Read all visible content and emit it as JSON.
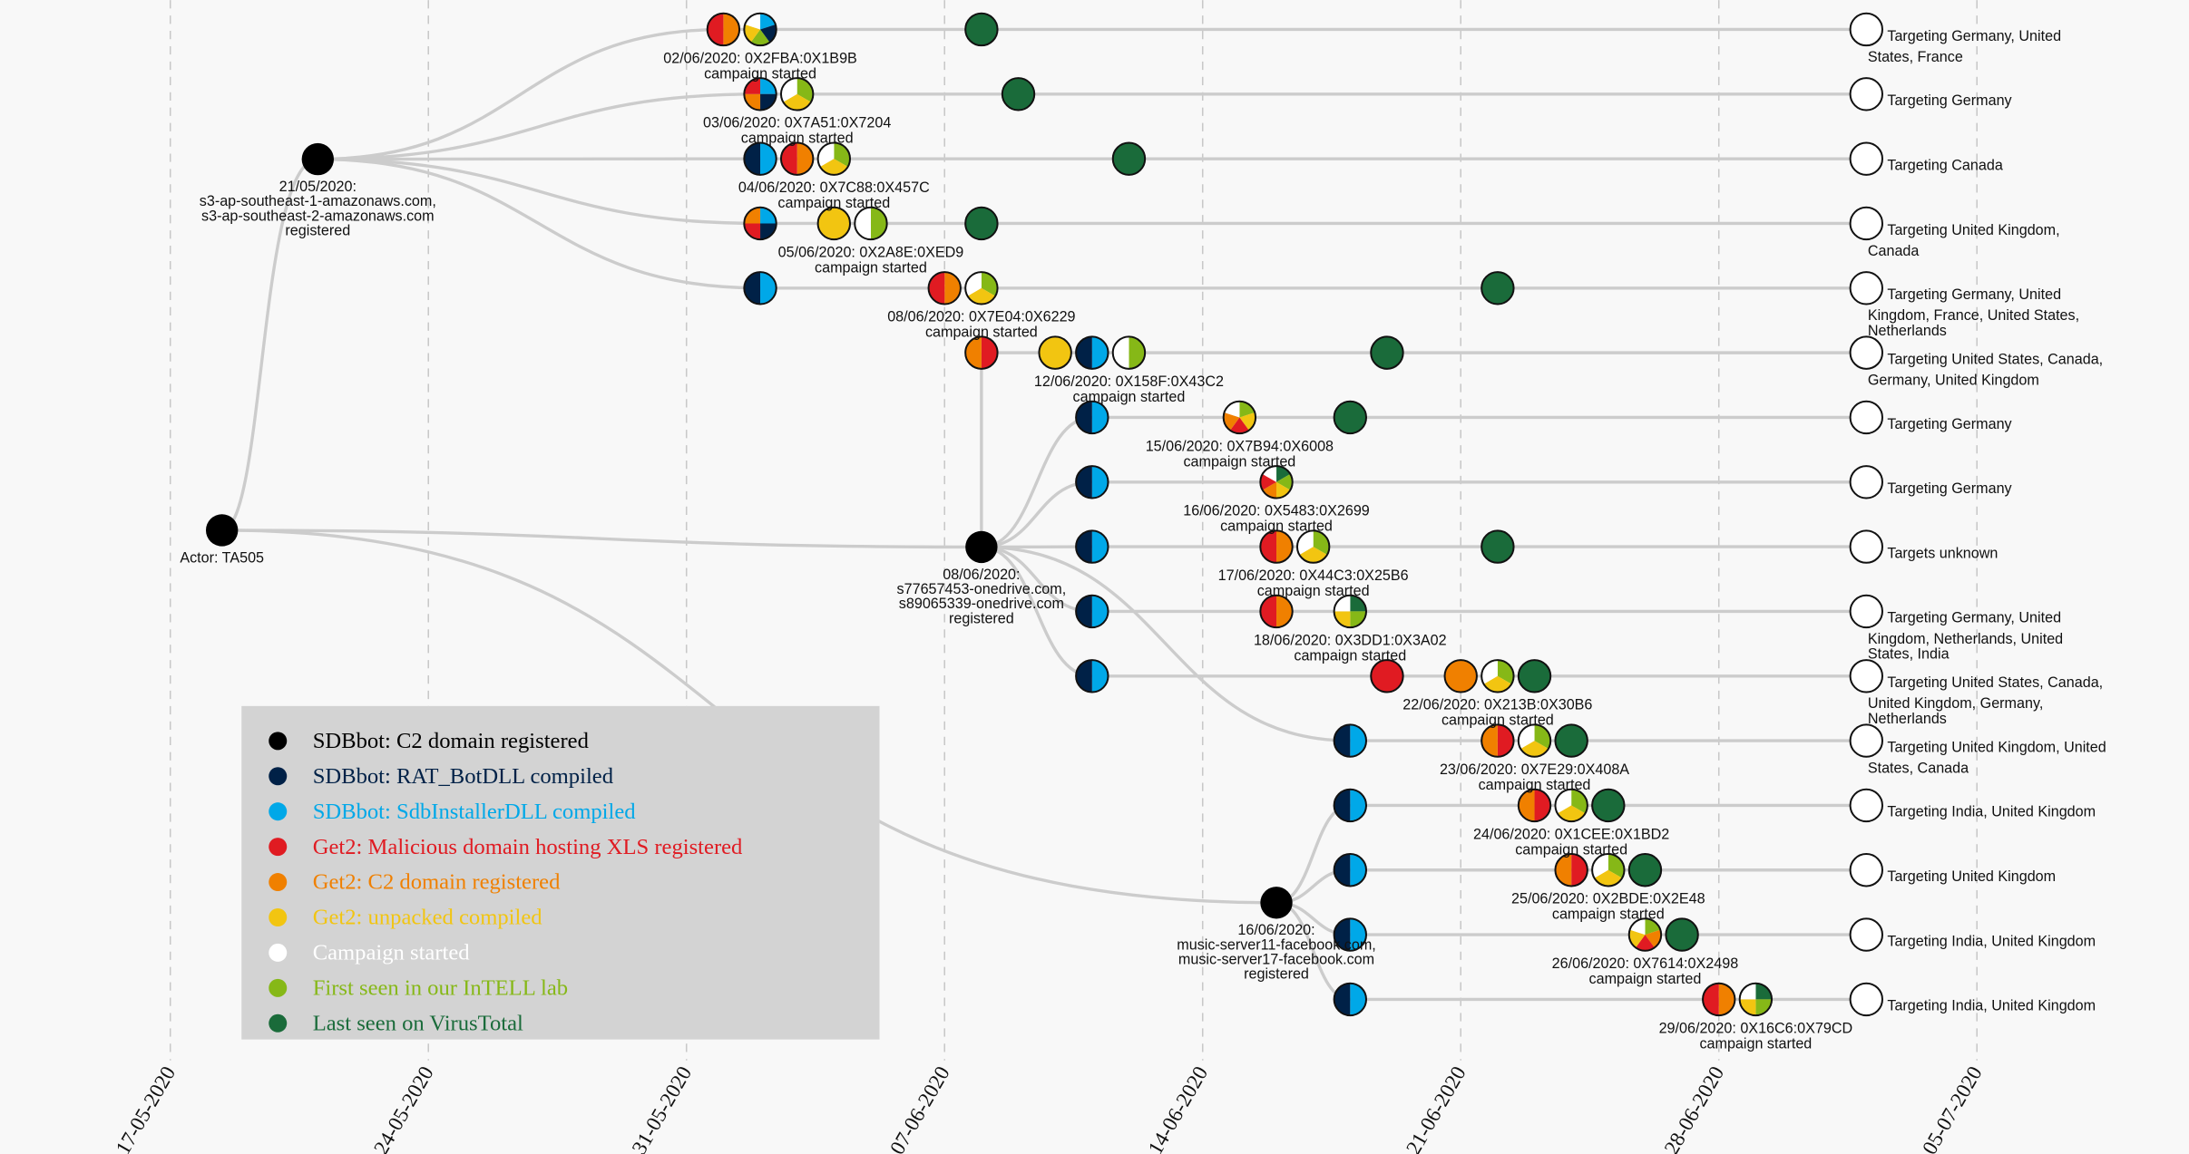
{
  "palette": {
    "black": "#000000",
    "navy": "#002147",
    "sky": "#00a8e8",
    "red": "#e01b22",
    "orange": "#f08000",
    "yellow": "#f2c511",
    "white": "#ffffff",
    "green": "#86b817",
    "darkgreen": "#1a6b3a"
  },
  "axis": {
    "start": "2020-05-17",
    "ticks": [
      "17-05-2020",
      "24-05-2020",
      "31-05-2020",
      "07-06-2020",
      "14-06-2020",
      "21-06-2020",
      "28-06-2020",
      "05-07-2020"
    ],
    "grid": "dashed vertical"
  },
  "actor": {
    "label": "Actor: TA505"
  },
  "domains": [
    {
      "id": "d1",
      "date": "2020-05-21",
      "lines": [
        "21/05/2020:",
        "s3-ap-southeast-1-amazonaws.com,",
        "s3-ap-southeast-2-amazonaws.com",
        "registered"
      ]
    },
    {
      "id": "d2",
      "date": "2020-06-08",
      "lines": [
        "08/06/2020:",
        "s77657453-onedrive.com,",
        "s89065339-onedrive.com",
        "registered"
      ]
    },
    {
      "id": "d3",
      "date": "2020-06-16",
      "lines": [
        "16/06/2020:",
        "music-server11-facebook.com,",
        "music-server17-facebook.com",
        "registered"
      ]
    }
  ],
  "campaigns": [
    {
      "parent": "d1",
      "label": [
        "02/06/2020: 0X2FBA:0X1B9B",
        "campaign started"
      ],
      "target_date": "2020-07-02",
      "target": [
        "Targeting Germany, United",
        "States, France"
      ],
      "nodes": [
        {
          "date": "2020-06-01",
          "colors": [
            "orange",
            "red"
          ]
        },
        {
          "date": "2020-06-02",
          "colors": [
            "sky",
            "navy",
            "green",
            "yellow",
            "white"
          ]
        },
        {
          "date": "2020-06-08",
          "colors": [
            "darkgreen"
          ]
        }
      ]
    },
    {
      "parent": "d1",
      "label": [
        "03/06/2020: 0X7A51:0X7204",
        "campaign started"
      ],
      "target_date": "2020-07-02",
      "target": [
        "Targeting Germany"
      ],
      "nodes": [
        {
          "date": "2020-06-02",
          "colors": [
            "sky",
            "navy",
            "orange",
            "red"
          ]
        },
        {
          "date": "2020-06-03",
          "colors": [
            "green",
            "yellow",
            "white"
          ]
        },
        {
          "date": "2020-06-09",
          "colors": [
            "darkgreen"
          ]
        }
      ]
    },
    {
      "parent": "d1",
      "label": [
        "04/06/2020: 0X7C88:0X457C",
        "campaign started"
      ],
      "target_date": "2020-07-02",
      "target": [
        "Targeting Canada"
      ],
      "nodes": [
        {
          "date": "2020-06-02",
          "colors": [
            "sky",
            "navy"
          ]
        },
        {
          "date": "2020-06-03",
          "colors": [
            "orange",
            "red"
          ]
        },
        {
          "date": "2020-06-04",
          "colors": [
            "green",
            "yellow",
            "white"
          ]
        },
        {
          "date": "2020-06-12",
          "colors": [
            "darkgreen"
          ]
        }
      ]
    },
    {
      "parent": "d1",
      "label": [
        "05/06/2020: 0X2A8E:0XED9",
        "campaign started"
      ],
      "target_date": "2020-07-02",
      "target": [
        "Targeting United Kingdom,",
        "Canada"
      ],
      "nodes": [
        {
          "date": "2020-06-02",
          "colors": [
            "sky",
            "navy",
            "red",
            "orange"
          ]
        },
        {
          "date": "2020-06-04",
          "colors": [
            "yellow"
          ]
        },
        {
          "date": "2020-06-05",
          "colors": [
            "green",
            "white"
          ]
        },
        {
          "date": "2020-06-08",
          "colors": [
            "darkgreen"
          ]
        }
      ]
    },
    {
      "parent": "d1",
      "label": [
        "08/06/2020: 0X7E04:0X6229",
        "campaign started"
      ],
      "target_date": "2020-07-02",
      "target": [
        "Targeting Germany, United",
        "Kingdom, France, United States,",
        "Netherlands"
      ],
      "nodes": [
        {
          "date": "2020-06-02",
          "colors": [
            "sky",
            "navy"
          ]
        },
        {
          "date": "2020-06-07",
          "colors": [
            "orange",
            "red"
          ]
        },
        {
          "date": "2020-06-08",
          "colors": [
            "green",
            "yellow",
            "white"
          ]
        },
        {
          "date": "2020-06-22",
          "colors": [
            "darkgreen"
          ]
        }
      ]
    },
    {
      "parent": "d2",
      "label": [
        "12/06/2020: 0X158F:0X43C2",
        "campaign started"
      ],
      "target_date": "2020-07-02",
      "target": [
        "Targeting United States, Canada,",
        "Germany, United Kingdom"
      ],
      "nodes": [
        {
          "date": "2020-06-08",
          "colors": [
            "red",
            "orange"
          ]
        },
        {
          "date": "2020-06-10",
          "colors": [
            "yellow"
          ]
        },
        {
          "date": "2020-06-11",
          "colors": [
            "sky",
            "navy"
          ]
        },
        {
          "date": "2020-06-12",
          "colors": [
            "green",
            "white"
          ]
        },
        {
          "date": "2020-06-19",
          "colors": [
            "darkgreen"
          ]
        }
      ]
    },
    {
      "parent": "d2",
      "label": [
        "15/06/2020: 0X7B94:0X6008",
        "campaign started"
      ],
      "target_date": "2020-07-02",
      "target": [
        "Targeting Germany"
      ],
      "nodes": [
        {
          "date": "2020-06-11",
          "colors": [
            "sky",
            "navy"
          ]
        },
        {
          "date": "2020-06-15",
          "colors": [
            "green",
            "yellow",
            "red",
            "orange",
            "white"
          ]
        },
        {
          "date": "2020-06-18",
          "colors": [
            "darkgreen"
          ]
        }
      ]
    },
    {
      "parent": "d2",
      "label": [
        "16/06/2020: 0X5483:0X2699",
        "campaign started"
      ],
      "target_date": "2020-07-02",
      "target": [
        "Targeting Germany"
      ],
      "nodes": [
        {
          "date": "2020-06-11",
          "colors": [
            "sky",
            "navy"
          ]
        },
        {
          "date": "2020-06-16",
          "colors": [
            "darkgreen",
            "green",
            "yellow",
            "orange",
            "red",
            "white"
          ]
        }
      ]
    },
    {
      "parent": "d2",
      "label": [
        "17/06/2020: 0X44C3:0X25B6",
        "campaign started"
      ],
      "target_date": "2020-07-02",
      "target": [
        "Targets unknown"
      ],
      "nodes": [
        {
          "date": "2020-06-11",
          "colors": [
            "sky",
            "navy"
          ]
        },
        {
          "date": "2020-06-16",
          "colors": [
            "orange",
            "red"
          ]
        },
        {
          "date": "2020-06-17",
          "colors": [
            "green",
            "yellow",
            "white"
          ]
        },
        {
          "date": "2020-06-22",
          "colors": [
            "darkgreen"
          ]
        }
      ]
    },
    {
      "parent": "d2",
      "label": [
        "18/06/2020: 0X3DD1:0X3A02",
        "campaign started"
      ],
      "target_date": "2020-07-02",
      "target": [
        "Targeting Germany, United",
        "Kingdom, Netherlands, United",
        "States, India"
      ],
      "nodes": [
        {
          "date": "2020-06-11",
          "colors": [
            "sky",
            "navy"
          ]
        },
        {
          "date": "2020-06-16",
          "colors": [
            "orange",
            "red"
          ]
        },
        {
          "date": "2020-06-18",
          "colors": [
            "darkgreen",
            "green",
            "yellow",
            "white"
          ]
        }
      ]
    },
    {
      "parent": "d2",
      "label": [
        "22/06/2020: 0X213B:0X30B6",
        "campaign started"
      ],
      "target_date": "2020-07-02",
      "target": [
        "Targeting United States, Canada,",
        "United Kingdom, Germany,",
        "Netherlands"
      ],
      "nodes": [
        {
          "date": "2020-06-11",
          "colors": [
            "sky",
            "navy"
          ]
        },
        {
          "date": "2020-06-19",
          "colors": [
            "red"
          ]
        },
        {
          "date": "2020-06-21",
          "colors": [
            "orange"
          ]
        },
        {
          "date": "2020-06-22",
          "colors": [
            "green",
            "yellow",
            "white"
          ]
        },
        {
          "date": "2020-06-23",
          "colors": [
            "darkgreen"
          ]
        }
      ]
    },
    {
      "parent": "d2",
      "label": [
        "23/06/2020: 0X7E29:0X408A",
        "campaign started"
      ],
      "target_date": "2020-07-02",
      "target": [
        "Targeting United Kingdom, United",
        "States, Canada"
      ],
      "nodes": [
        {
          "date": "2020-06-18",
          "colors": [
            "sky",
            "navy"
          ]
        },
        {
          "date": "2020-06-22",
          "colors": [
            "red",
            "orange"
          ]
        },
        {
          "date": "2020-06-23",
          "colors": [
            "green",
            "yellow",
            "white"
          ]
        },
        {
          "date": "2020-06-24",
          "colors": [
            "darkgreen"
          ]
        }
      ]
    },
    {
      "parent": "d3",
      "label": [
        "24/06/2020: 0X1CEE:0X1BD2",
        "campaign started"
      ],
      "target_date": "2020-07-02",
      "target": [
        "Targeting India, United Kingdom"
      ],
      "nodes": [
        {
          "date": "2020-06-18",
          "colors": [
            "sky",
            "navy"
          ]
        },
        {
          "date": "2020-06-23",
          "colors": [
            "red",
            "orange"
          ]
        },
        {
          "date": "2020-06-24",
          "colors": [
            "green",
            "yellow",
            "white"
          ]
        },
        {
          "date": "2020-06-25",
          "colors": [
            "darkgreen"
          ]
        }
      ]
    },
    {
      "parent": "d3",
      "label": [
        "25/06/2020: 0X2BDE:0X2E48",
        "campaign started"
      ],
      "target_date": "2020-07-02",
      "target": [
        "Targeting United Kingdom"
      ],
      "nodes": [
        {
          "date": "2020-06-18",
          "colors": [
            "sky",
            "navy"
          ]
        },
        {
          "date": "2020-06-24",
          "colors": [
            "red",
            "orange"
          ]
        },
        {
          "date": "2020-06-25",
          "colors": [
            "green",
            "yellow",
            "white"
          ]
        },
        {
          "date": "2020-06-26",
          "colors": [
            "darkgreen"
          ]
        }
      ]
    },
    {
      "parent": "d3",
      "label": [
        "26/06/2020: 0X7614:0X2498",
        "campaign started"
      ],
      "target_date": "2020-07-02",
      "target": [
        "Targeting India, United Kingdom"
      ],
      "nodes": [
        {
          "date": "2020-06-18",
          "colors": [
            "sky",
            "navy"
          ]
        },
        {
          "date": "2020-06-26",
          "colors": [
            "green",
            "orange",
            "red",
            "yellow",
            "white"
          ]
        },
        {
          "date": "2020-06-27",
          "colors": [
            "darkgreen"
          ]
        }
      ]
    },
    {
      "parent": "d3",
      "label": [
        "29/06/2020: 0X16C6:0X79CD",
        "campaign started"
      ],
      "target_date": "2020-07-02",
      "target": [
        "Targeting India, United Kingdom"
      ],
      "nodes": [
        {
          "date": "2020-06-18",
          "colors": [
            "sky",
            "navy"
          ]
        },
        {
          "date": "2020-06-28",
          "colors": [
            "orange",
            "red"
          ]
        },
        {
          "date": "2020-06-29",
          "colors": [
            "darkgreen",
            "green",
            "yellow",
            "white"
          ]
        }
      ]
    }
  ],
  "legend": [
    {
      "label": "SDBbot: C2 domain registered",
      "color": "black"
    },
    {
      "label": "SDBbot: RAT_BotDLL compiled",
      "color": "navy"
    },
    {
      "label": "SDBbot: SdbInstallerDLL compiled",
      "color": "sky"
    },
    {
      "label": "Get2: Malicious domain hosting XLS registered",
      "color": "red"
    },
    {
      "label": "Get2: C2 domain registered",
      "color": "orange"
    },
    {
      "label": "Get2: unpacked compiled",
      "color": "yellow"
    },
    {
      "label": "Campaign started",
      "color": "white"
    },
    {
      "label": "First seen in our InTELL lab",
      "color": "green"
    },
    {
      "label": "Last seen on VirusTotal",
      "color": "darkgreen"
    }
  ]
}
